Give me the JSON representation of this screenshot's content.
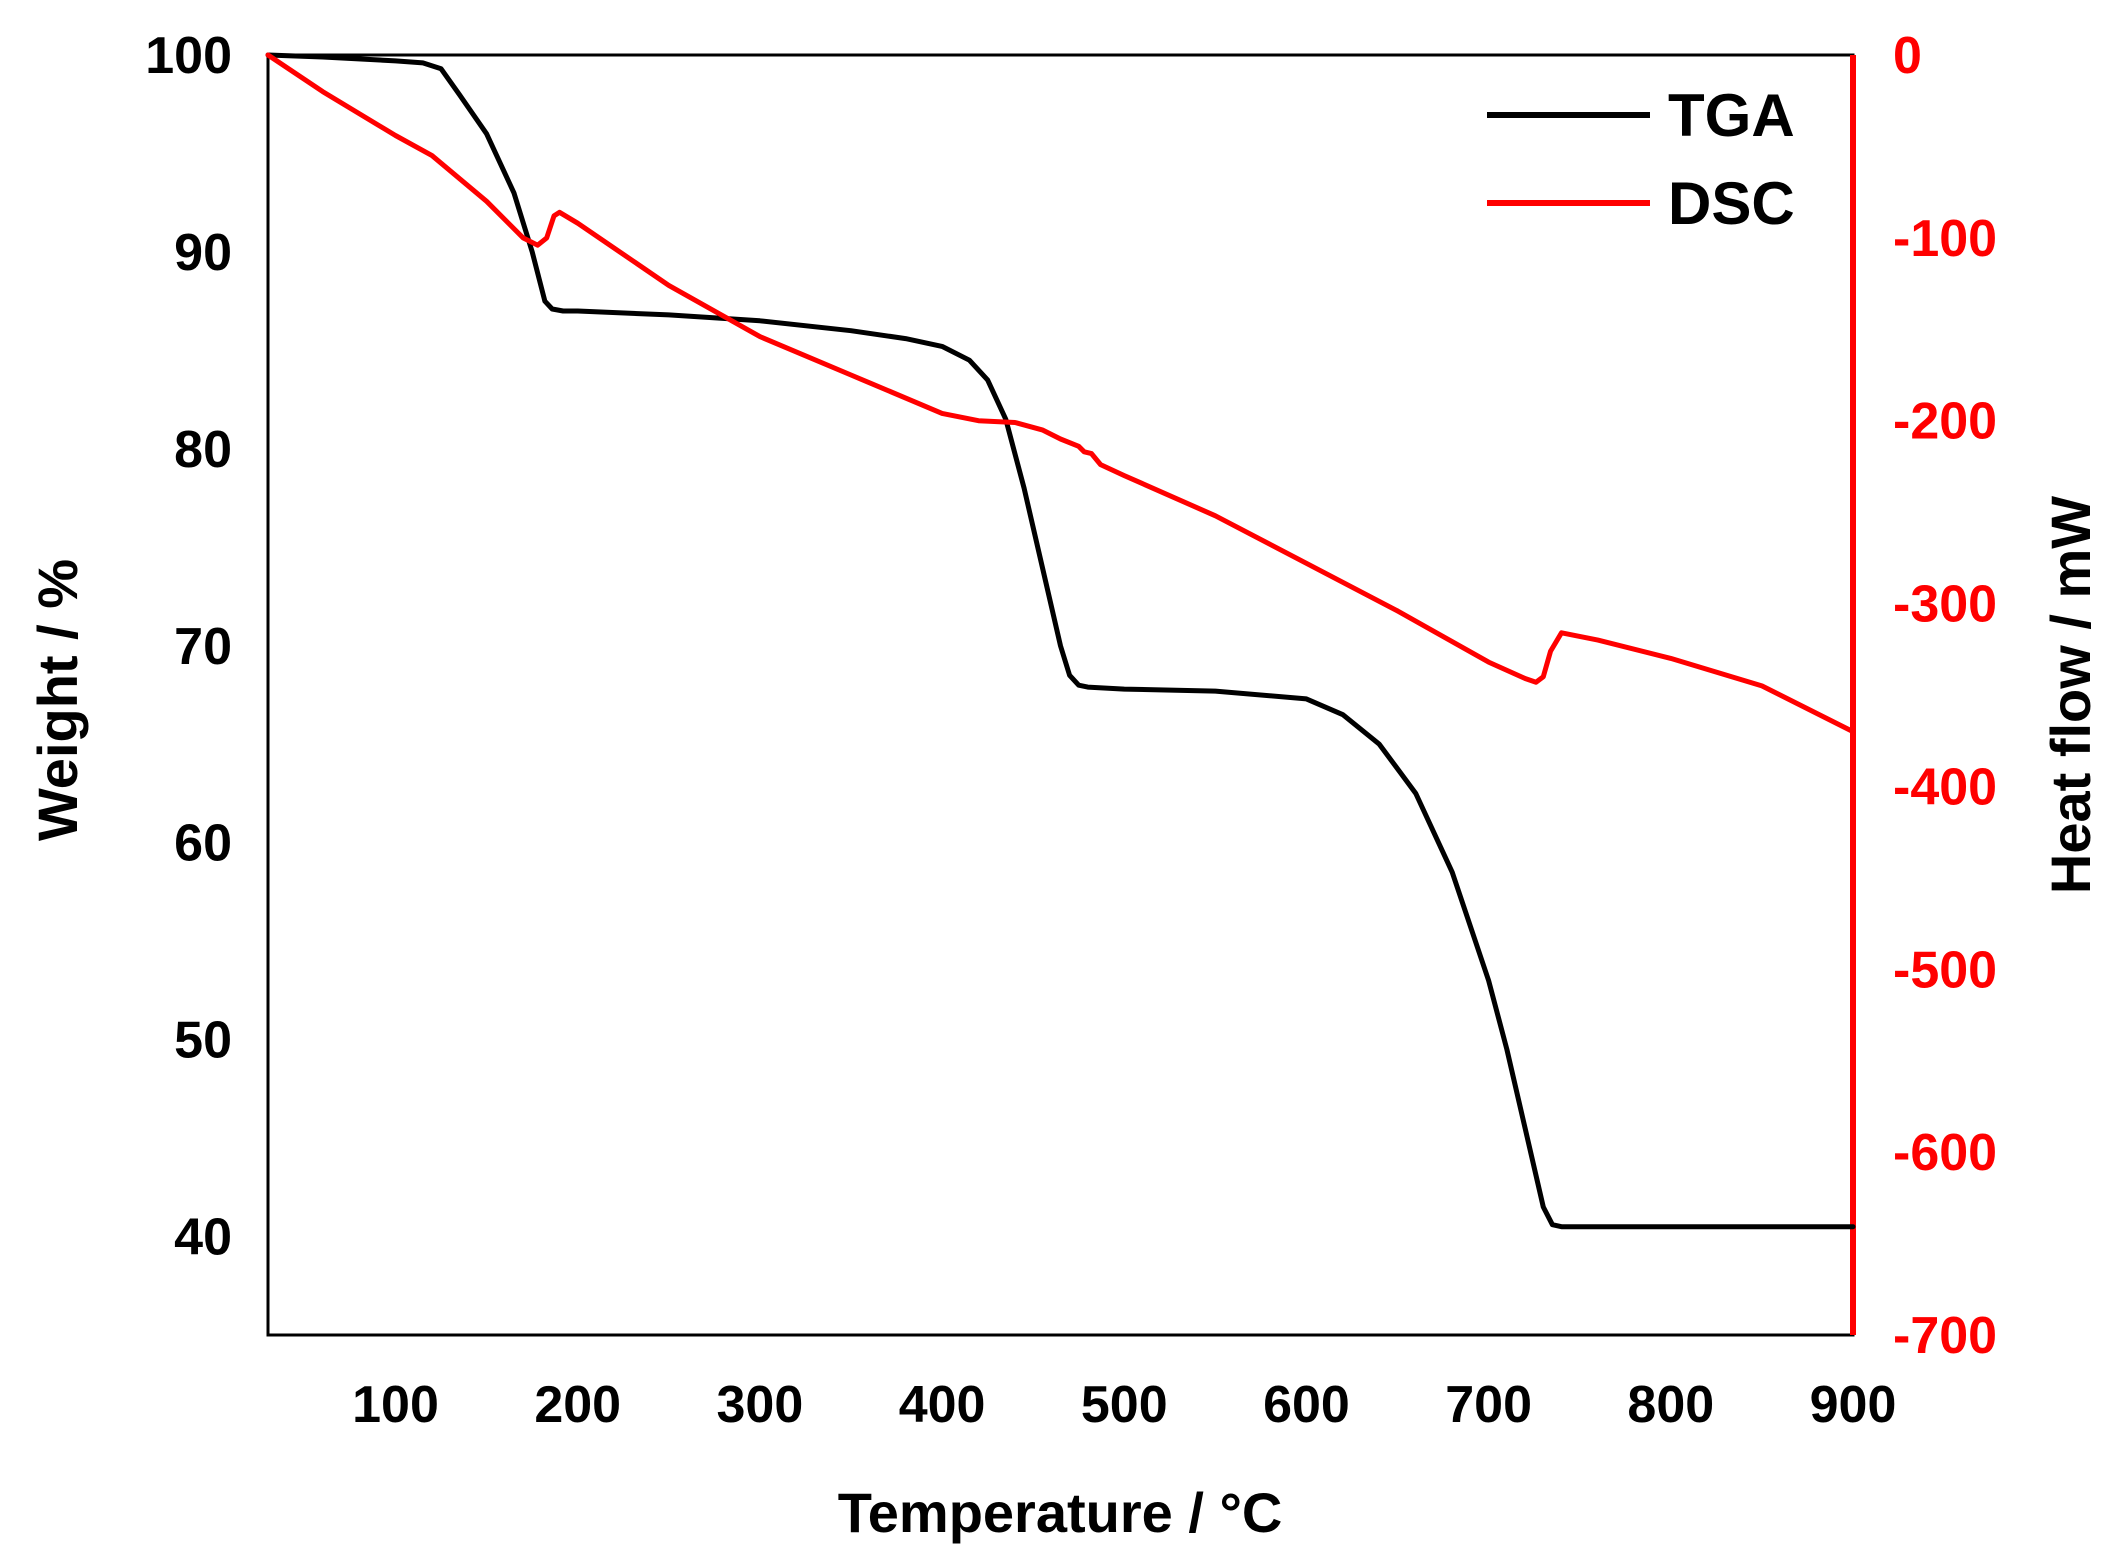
{
  "chart_data": {
    "type": "line",
    "title": "",
    "xlabel": "Temperature / °C",
    "ylabel": "Weight / %",
    "y2label": "Heat flow / mW",
    "xlim": [
      30,
      900
    ],
    "ylim": [
      35,
      100
    ],
    "y2lim": [
      -700,
      0
    ],
    "x_ticks": [
      100,
      200,
      300,
      400,
      500,
      600,
      700,
      800,
      900
    ],
    "y_ticks": [
      40,
      50,
      60,
      70,
      80,
      90,
      100
    ],
    "y2_ticks": [
      0,
      -100,
      -200,
      -300,
      -400,
      -500,
      -600,
      -700
    ],
    "grid": false,
    "legend_position": "top-right",
    "colors": {
      "TGA": "#000000",
      "DSC": "#ff0000",
      "axis": "#000000",
      "right_axis": "#ff0000"
    },
    "series": [
      {
        "name": "TGA",
        "axis": "left",
        "x": [
          30,
          60,
          100,
          115,
          125,
          135,
          150,
          165,
          175,
          182,
          186,
          192,
          200,
          250,
          300,
          350,
          380,
          400,
          415,
          425,
          435,
          445,
          455,
          465,
          470,
          475,
          480,
          500,
          550,
          600,
          620,
          640,
          660,
          680,
          700,
          710,
          720,
          730,
          735,
          740,
          800,
          900
        ],
        "y": [
          100,
          99.9,
          99.7,
          99.6,
          99.3,
          98.0,
          96.0,
          93.0,
          90.0,
          87.5,
          87.1,
          87.0,
          87.0,
          86.8,
          86.5,
          86.0,
          85.6,
          85.2,
          84.5,
          83.5,
          81.5,
          78.0,
          74.0,
          70.0,
          68.5,
          68.0,
          67.9,
          67.8,
          67.7,
          67.3,
          66.5,
          65.0,
          62.5,
          58.5,
          53.0,
          49.5,
          45.5,
          41.5,
          40.6,
          40.5,
          40.5,
          40.5
        ]
      },
      {
        "name": "DSC",
        "axis": "right",
        "x": [
          30,
          60,
          100,
          120,
          150,
          170,
          178,
          183,
          187,
          190,
          200,
          250,
          300,
          350,
          400,
          420,
          440,
          455,
          465,
          475,
          478,
          482,
          487,
          500,
          550,
          600,
          650,
          700,
          720,
          726,
          730,
          734,
          740,
          760,
          800,
          850,
          900
        ],
        "y": [
          0,
          -20,
          -44,
          -55,
          -80,
          -100,
          -104,
          -100,
          -88,
          -86,
          -92,
          -126,
          -154,
          -175,
          -196,
          -200,
          -201,
          -205,
          -210,
          -214,
          -217,
          -218,
          -224,
          -230,
          -252,
          -278,
          -304,
          -332,
          -341,
          -343,
          -340,
          -326,
          -316,
          -320,
          -330,
          -345,
          -370
        ]
      }
    ]
  }
}
